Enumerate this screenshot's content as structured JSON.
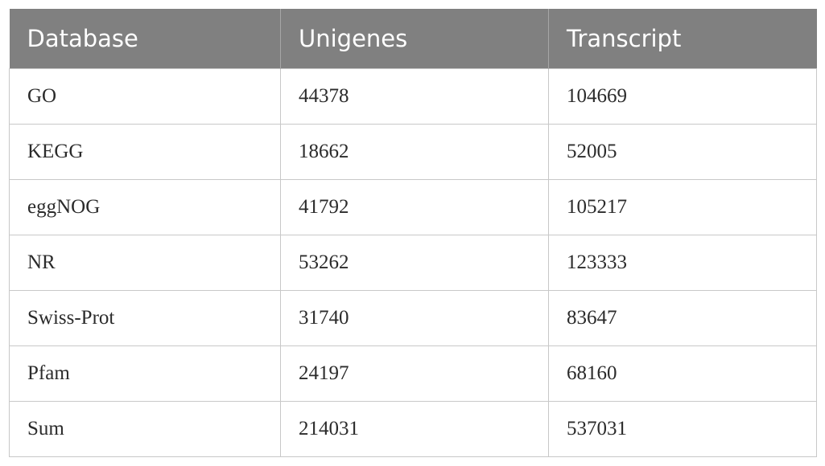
{
  "table": {
    "header": [
      "Database",
      "Unigenes",
      "Transcript"
    ],
    "rows": [
      [
        "GO",
        44378,
        104669
      ],
      [
        "KEGG",
        18662,
        52005
      ],
      [
        "eggNOG",
        41792,
        105217
      ],
      [
        "NR",
        53262,
        123333
      ],
      [
        "Swiss-Prot",
        31740,
        83647
      ],
      [
        "Pfam",
        24197,
        68160
      ],
      [
        "Sum",
        214031,
        537031
      ]
    ]
  }
}
